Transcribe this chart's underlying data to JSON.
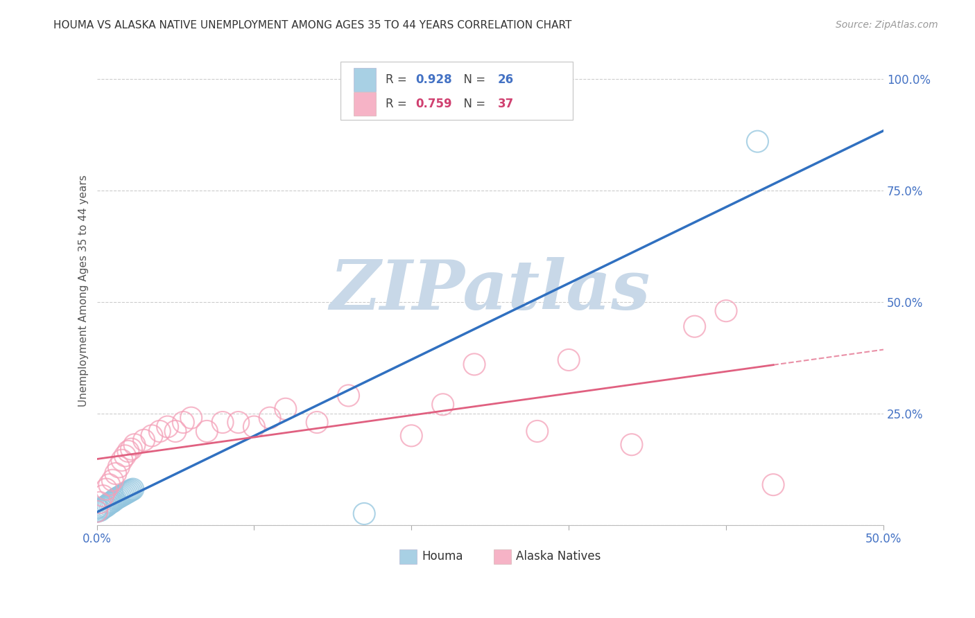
{
  "title": "HOUMA VS ALASKA NATIVE UNEMPLOYMENT AMONG AGES 35 TO 44 YEARS CORRELATION CHART",
  "source": "Source: ZipAtlas.com",
  "ylabel": "Unemployment Among Ages 35 to 44 years",
  "xlim": [
    0,
    0.5
  ],
  "ylim": [
    0,
    1.05
  ],
  "xtick_vals": [
    0.0,
    0.1,
    0.2,
    0.3,
    0.4,
    0.5
  ],
  "xticklabels": [
    "0.0%",
    "",
    "",
    "",
    "",
    "50.0%"
  ],
  "ytick_vals": [
    0.0,
    0.25,
    0.5,
    0.75,
    1.0
  ],
  "yticklabels": [
    "",
    "25.0%",
    "50.0%",
    "75.0%",
    "100.0%"
  ],
  "houma_R": "0.928",
  "houma_N": "26",
  "alaska_R": "0.759",
  "alaska_N": "37",
  "houma_scatter_color": "#92c5de",
  "alaska_scatter_color": "#f4a0b8",
  "houma_line_color": "#3070c0",
  "alaska_line_color": "#e06080",
  "watermark_text": "ZIPatlas",
  "watermark_color_zip": "#c8d8e8",
  "watermark_color_atlas": "#8eb8d8",
  "legend_color_houma": "#4472c4",
  "legend_color_alaska": "#d04070",
  "houma_x": [
    0.0,
    0.0,
    0.002,
    0.003,
    0.004,
    0.005,
    0.006,
    0.007,
    0.008,
    0.009,
    0.01,
    0.011,
    0.012,
    0.013,
    0.014,
    0.015,
    0.016,
    0.017,
    0.018,
    0.019,
    0.02,
    0.021,
    0.022,
    0.023,
    0.17,
    0.42
  ],
  "houma_y": [
    0.03,
    0.038,
    0.032,
    0.035,
    0.038,
    0.04,
    0.042,
    0.045,
    0.048,
    0.05,
    0.052,
    0.055,
    0.058,
    0.06,
    0.062,
    0.064,
    0.066,
    0.068,
    0.07,
    0.072,
    0.074,
    0.076,
    0.078,
    0.08,
    0.025,
    0.86
  ],
  "alaska_x": [
    0.0,
    0.002,
    0.004,
    0.006,
    0.008,
    0.01,
    0.012,
    0.014,
    0.016,
    0.018,
    0.02,
    0.022,
    0.024,
    0.03,
    0.035,
    0.04,
    0.045,
    0.05,
    0.055,
    0.06,
    0.07,
    0.08,
    0.09,
    0.1,
    0.11,
    0.12,
    0.14,
    0.16,
    0.2,
    0.22,
    0.24,
    0.28,
    0.3,
    0.34,
    0.38,
    0.4,
    0.43
  ],
  "alaska_y": [
    0.03,
    0.05,
    0.065,
    0.08,
    0.09,
    0.1,
    0.115,
    0.13,
    0.145,
    0.155,
    0.165,
    0.17,
    0.18,
    0.19,
    0.2,
    0.21,
    0.22,
    0.21,
    0.23,
    0.24,
    0.21,
    0.23,
    0.23,
    0.22,
    0.24,
    0.26,
    0.23,
    0.29,
    0.2,
    0.27,
    0.36,
    0.21,
    0.37,
    0.18,
    0.445,
    0.48,
    0.09
  ]
}
